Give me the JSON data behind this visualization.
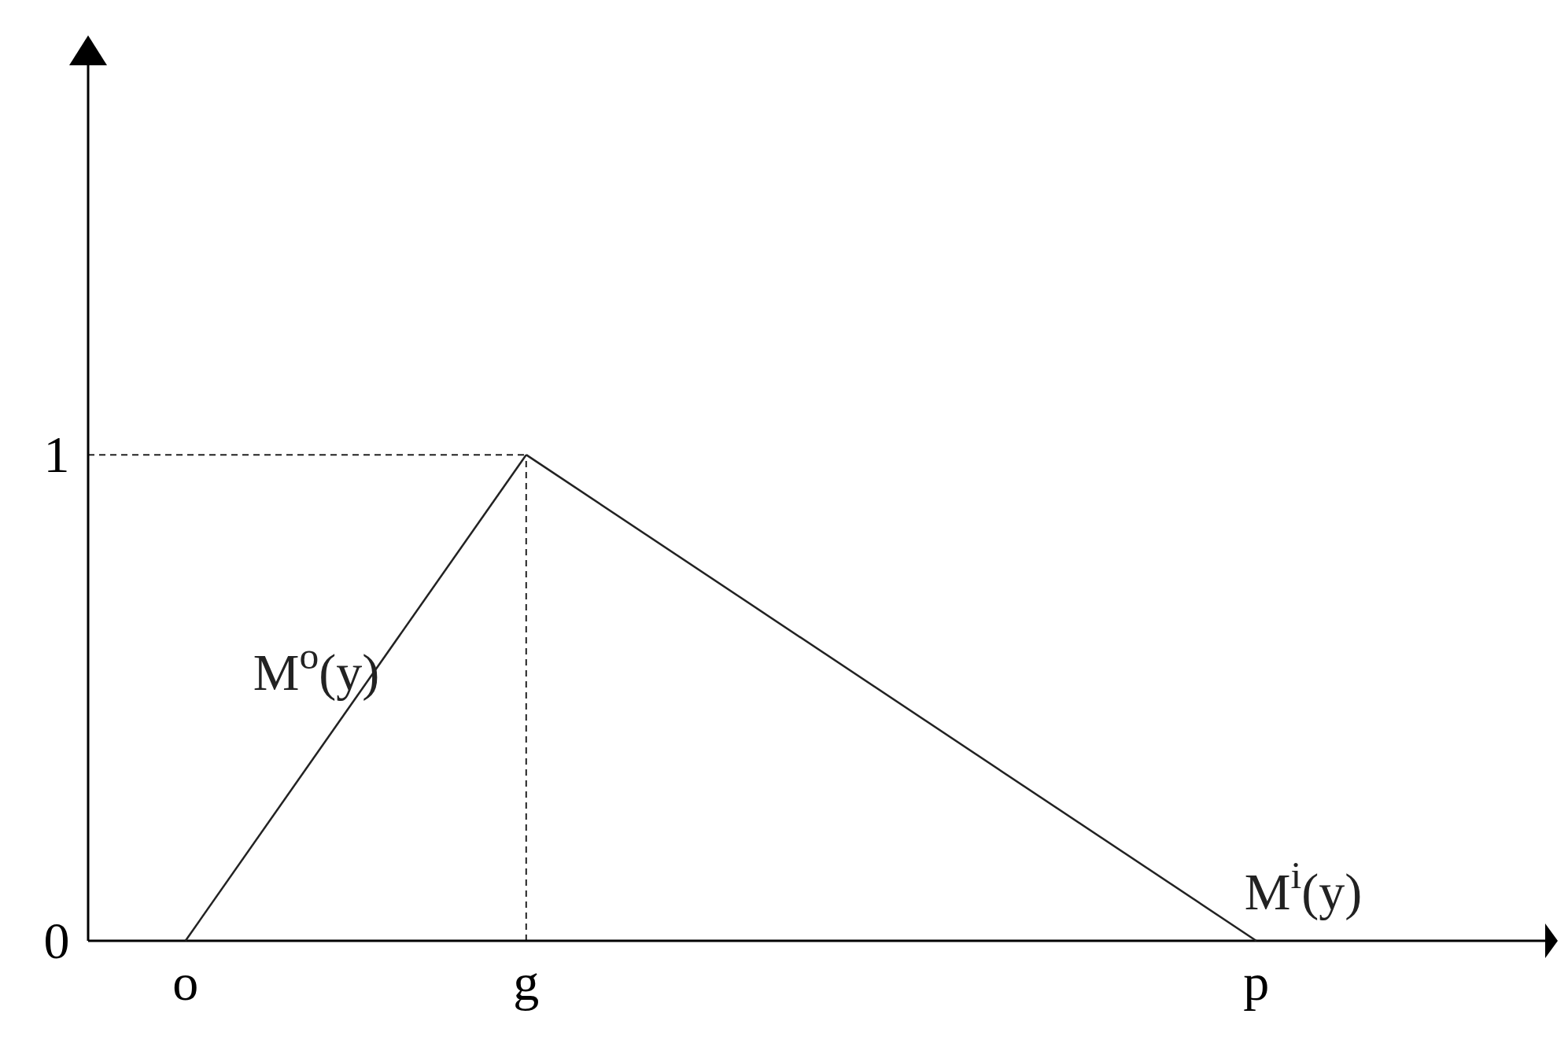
{
  "chart_data": {
    "type": "line",
    "ylim": [
      0,
      1.85
    ],
    "categories": [
      null,
      null,
      "o",
      null,
      null,
      null,
      null,
      null,
      null,
      "g",
      null,
      null,
      null,
      null,
      null,
      null,
      null,
      null,
      null,
      null,
      null,
      null,
      null,
      null,
      "p",
      null,
      null,
      null,
      null,
      null,
      null
    ],
    "yticks": [
      {
        "value": 0,
        "label": "0"
      },
      {
        "value": 1,
        "label": "1"
      }
    ],
    "series": [
      {
        "name": "M$^{o}$(y)",
        "color": "#222222",
        "values": [
          null,
          null,
          0,
          null,
          null,
          null,
          null,
          null,
          null,
          1,
          null,
          null,
          null,
          null,
          null,
          null,
          null,
          null,
          null,
          null,
          null,
          null,
          null,
          null,
          null,
          null,
          null,
          null,
          null,
          null,
          null
        ]
      },
      {
        "name": "M$^{i}$(y)",
        "color": "#222222",
        "values": [
          null,
          null,
          null,
          null,
          null,
          null,
          null,
          null,
          null,
          1,
          null,
          null,
          null,
          null,
          null,
          null,
          null,
          null,
          null,
          null,
          null,
          null,
          null,
          null,
          0,
          null,
          null,
          null,
          null,
          null,
          null
        ]
      }
    ],
    "ref_lines": [
      {
        "axis": "y",
        "value": 1,
        "line_style": "dashed",
        "color": "#222222"
      },
      {
        "axis": "x",
        "value": "g",
        "line_style": "dashed",
        "color": "#222222"
      }
    ],
    "line_style": "solid",
    "marker": "none",
    "grid": false
  }
}
